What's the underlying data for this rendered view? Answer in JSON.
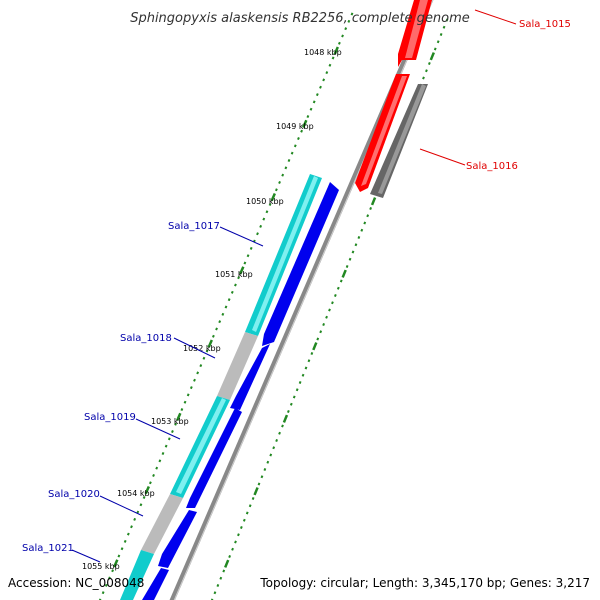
{
  "title": "Sphingopyxis alaskensis RB2256, complete genome",
  "accession": "Accession: NC_008048",
  "topology": "Topology: circular; Length: 3,345,170 bp; Genes: 3,217",
  "scale": {
    "labels": [
      "1048 kbp",
      "1049 kbp",
      "1050 kbp",
      "1051 kbp",
      "1052 kbp",
      "1053 kbp",
      "1054 kbp",
      "1055 kbp"
    ]
  },
  "genes": [
    {
      "name": "Sala_1015",
      "strand": "forward",
      "label_color": "#e00000"
    },
    {
      "name": "Sala_1016",
      "strand": "forward",
      "label_color": "#e00000"
    },
    {
      "name": "Sala_1017",
      "strand": "reverse",
      "label_color": "#0000aa"
    },
    {
      "name": "Sala_1018",
      "strand": "reverse",
      "label_color": "#0000aa"
    },
    {
      "name": "Sala_1019",
      "strand": "reverse",
      "label_color": "#0000aa"
    },
    {
      "name": "Sala_1020",
      "strand": "reverse",
      "label_color": "#0000aa"
    },
    {
      "name": "Sala_1021",
      "strand": "reverse",
      "label_color": "#0000aa"
    }
  ],
  "colors": {
    "forward_cds": "#ff0000",
    "forward_feature": "#666666",
    "reverse_cds": "#0000ee",
    "reverse_feature_cyan": "#11cccc",
    "reverse_feature_gray": "#bbbbbb",
    "backbone": "#888888",
    "tick": "#228822"
  }
}
